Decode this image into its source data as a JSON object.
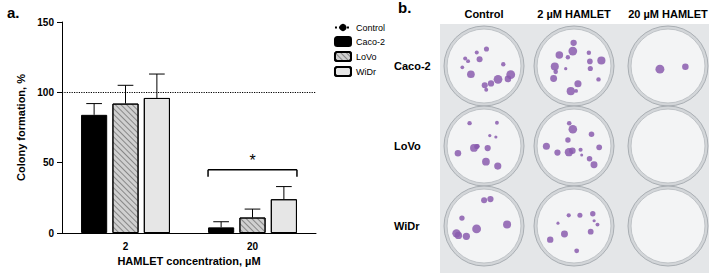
{
  "chart_data": {
    "type": "bar",
    "panel_label": "a.",
    "x_label": "HAMLET concentration, µM",
    "y_label": "Colony formation, %",
    "categories": [
      "2",
      "20"
    ],
    "series": [
      {
        "name": "Caco-2",
        "color": "#000000",
        "values": [
          84,
          4
        ],
        "errors": [
          8,
          4
        ]
      },
      {
        "name": "LoVo",
        "color": "#d0d0d0",
        "values": [
          92,
          11
        ],
        "errors": [
          13,
          6
        ]
      },
      {
        "name": "WiDr",
        "color": "#e6e6e6",
        "values": [
          96,
          24
        ],
        "errors": [
          17,
          9
        ]
      }
    ],
    "reference": {
      "name": "Control",
      "value": 100,
      "line_style": "dotted",
      "color": "#000000"
    },
    "annotations": [
      {
        "text": "*",
        "category": "20",
        "y": 45
      }
    ],
    "ylim": [
      0,
      150
    ],
    "yticks": [
      0,
      50,
      100,
      150
    ],
    "grid": false,
    "legend": "upper right"
  },
  "photo_panel": {
    "panel_label": "b.",
    "columns": [
      "Control",
      "2 µM HAMLET",
      "20 µM HAMLET"
    ],
    "rows": [
      "Caco-2",
      "LoVo",
      "WiDr"
    ]
  }
}
